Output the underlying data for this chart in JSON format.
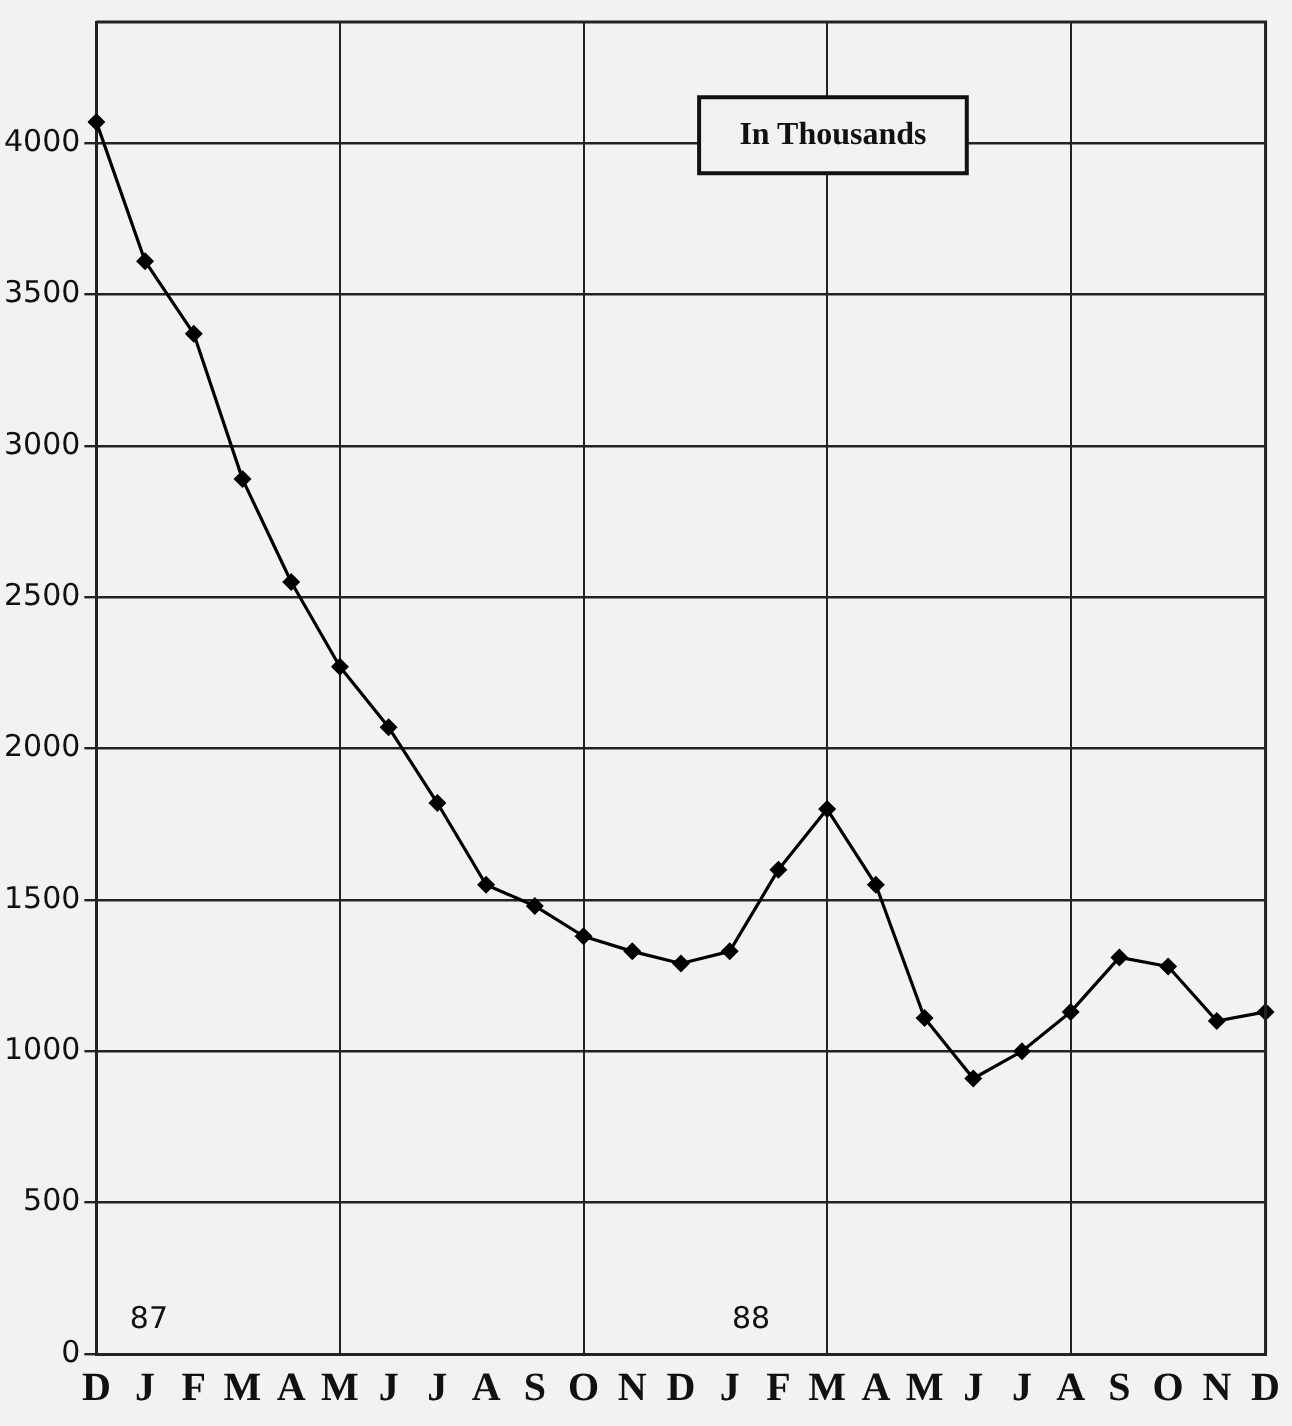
{
  "chart_data": {
    "type": "line",
    "categories": [
      "D",
      "J",
      "F",
      "M",
      "A",
      "M",
      "J",
      "J",
      "A",
      "S",
      "O",
      "N",
      "D",
      "J",
      "F",
      "M",
      "A",
      "M",
      "J",
      "J",
      "A",
      "S",
      "O",
      "N",
      "D"
    ],
    "series": [
      {
        "color": "#000000",
        "values": [
          4070,
          3610,
          3370,
          2890,
          2550,
          2270,
          2070,
          1820,
          1550,
          1480,
          1380,
          1330,
          1290,
          1330,
          1600,
          1800,
          1550,
          1110,
          910,
          1000,
          1130,
          1310,
          1280,
          1100,
          1130
        ]
      }
    ],
    "ylim": [
      0,
      4400
    ],
    "yticks": [
      0,
      500,
      1000,
      1500,
      2000,
      2500,
      3000,
      3500,
      4000
    ],
    "grid": true,
    "legend": false,
    "marker": "diamond",
    "line_style": "solid",
    "annotations": [
      "In Thousands",
      "87",
      "88"
    ]
  }
}
